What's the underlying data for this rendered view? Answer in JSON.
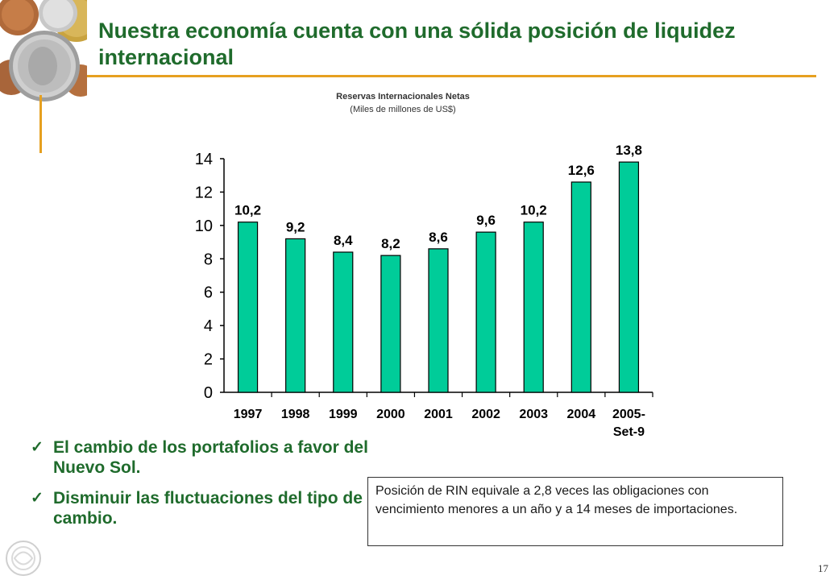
{
  "slide": {
    "title": "Nuestra economía cuenta con una sólida posición de liquidez internacional",
    "page_number": "17"
  },
  "chart_data": {
    "type": "bar",
    "title": "Reservas Internacionales Netas",
    "subtitle": "(Miles de millones de US$)",
    "categories": [
      "1997",
      "1998",
      "1999",
      "2000",
      "2001",
      "2002",
      "2003",
      "2004",
      "2005-\nSet-9"
    ],
    "values": [
      10.2,
      9.2,
      8.4,
      8.2,
      8.6,
      9.6,
      10.2,
      12.6,
      13.8
    ],
    "data_labels": [
      "10,2",
      "9,2",
      "8,4",
      "8,2",
      "8,6",
      "9,6",
      "10,2",
      "12,6",
      "13,8"
    ],
    "yticks": [
      0,
      2,
      4,
      6,
      8,
      10,
      12,
      14
    ],
    "ylim": [
      0,
      14
    ],
    "bar_color": "#00CC99",
    "grid": false,
    "legend": "none"
  },
  "bullets": [
    "El cambio de los portafolios a favor del Nuevo Sol.",
    "Disminuir las fluctuaciones del tipo de cambio."
  ],
  "note_text": "Posición de RIN equivale a 2,8 veces las obligaciones con vencimiento menores a un año y a 14 meses de importaciones.",
  "colors": {
    "title": "#1F6B2C",
    "accent_line": "#E6A020",
    "bar": "#00CC99"
  },
  "icons": {
    "coins": "coins-image",
    "logo": "bank-logo-icon",
    "bullet": "check-mark-icon"
  }
}
